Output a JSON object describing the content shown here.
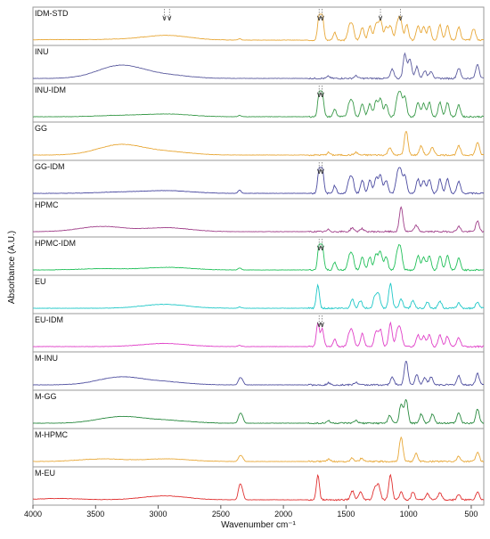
{
  "chart_data": {
    "type": "line",
    "title": "",
    "xlabel": "Wavenumber cm⁻¹",
    "ylabel": "Absorbance (A.U.)",
    "xlim": [
      4000,
      400
    ],
    "x_reversed": true,
    "x_ticks": [
      4000,
      3500,
      3000,
      2500,
      2000,
      1500,
      1000,
      500
    ],
    "grid": false,
    "legend": "none",
    "panels": [
      {
        "name": "IDM-STD",
        "color": "#e8a838",
        "peaks": [
          [
            3800,
            0.02
          ],
          [
            3300,
            0.03
          ],
          [
            2950,
            0.1
          ],
          [
            2900,
            0.08
          ],
          [
            2350,
            0.05
          ],
          [
            1715,
            0.9
          ],
          [
            1690,
            0.95
          ],
          [
            1590,
            0.3
          ],
          [
            1475,
            0.45
          ],
          [
            1450,
            0.55
          ],
          [
            1370,
            0.5
          ],
          [
            1310,
            0.55
          ],
          [
            1260,
            0.65
          ],
          [
            1225,
            0.8
          ],
          [
            1180,
            0.5
          ],
          [
            1145,
            0.55
          ],
          [
            1090,
            0.6
          ],
          [
            1065,
            0.75
          ],
          [
            1015,
            0.6
          ],
          [
            925,
            0.55
          ],
          [
            880,
            0.5
          ],
          [
            835,
            0.55
          ],
          [
            750,
            0.6
          ],
          [
            690,
            0.55
          ],
          [
            600,
            0.5
          ],
          [
            480,
            0.45
          ]
        ]
      },
      {
        "name": "INU",
        "color": "#5b5b9e",
        "peaks": [
          [
            3300,
            0.5
          ],
          [
            2930,
            0.12
          ],
          [
            1640,
            0.08
          ],
          [
            1420,
            0.1
          ],
          [
            1130,
            0.35
          ],
          [
            1030,
            0.95
          ],
          [
            990,
            0.75
          ],
          [
            935,
            0.45
          ],
          [
            870,
            0.3
          ],
          [
            820,
            0.28
          ],
          [
            600,
            0.4
          ],
          [
            450,
            0.55
          ]
        ]
      },
      {
        "name": "INU-IDM",
        "color": "#3a9a4a",
        "peaks": [
          [
            3300,
            0.05
          ],
          [
            2920,
            0.1
          ],
          [
            2350,
            0.05
          ],
          [
            1715,
            0.85
          ],
          [
            1690,
            0.9
          ],
          [
            1590,
            0.3
          ],
          [
            1475,
            0.45
          ],
          [
            1450,
            0.55
          ],
          [
            1370,
            0.5
          ],
          [
            1310,
            0.5
          ],
          [
            1260,
            0.6
          ],
          [
            1225,
            0.7
          ],
          [
            1180,
            0.5
          ],
          [
            1090,
            0.65
          ],
          [
            1065,
            0.8
          ],
          [
            1030,
            0.75
          ],
          [
            925,
            0.55
          ],
          [
            880,
            0.5
          ],
          [
            835,
            0.55
          ],
          [
            750,
            0.55
          ],
          [
            690,
            0.55
          ],
          [
            600,
            0.45
          ]
        ]
      },
      {
        "name": "GG",
        "color": "#e8a838",
        "peaks": [
          [
            3300,
            0.4
          ],
          [
            2920,
            0.12
          ],
          [
            1640,
            0.1
          ],
          [
            1420,
            0.1
          ],
          [
            1150,
            0.3
          ],
          [
            1020,
            0.95
          ],
          [
            900,
            0.35
          ],
          [
            810,
            0.3
          ],
          [
            600,
            0.35
          ],
          [
            450,
            0.5
          ]
        ]
      },
      {
        "name": "GG-IDM",
        "color": "#4a4aa0",
        "peaks": [
          [
            3300,
            0.05
          ],
          [
            2920,
            0.1
          ],
          [
            2350,
            0.12
          ],
          [
            1715,
            0.9
          ],
          [
            1690,
            0.95
          ],
          [
            1590,
            0.3
          ],
          [
            1475,
            0.45
          ],
          [
            1450,
            0.55
          ],
          [
            1370,
            0.5
          ],
          [
            1310,
            0.5
          ],
          [
            1260,
            0.6
          ],
          [
            1225,
            0.7
          ],
          [
            1180,
            0.5
          ],
          [
            1090,
            0.65
          ],
          [
            1065,
            0.8
          ],
          [
            1030,
            0.7
          ],
          [
            925,
            0.55
          ],
          [
            880,
            0.5
          ],
          [
            835,
            0.55
          ],
          [
            750,
            0.55
          ],
          [
            690,
            0.55
          ],
          [
            600,
            0.45
          ]
        ]
      },
      {
        "name": "HPMC",
        "color": "#a0408a",
        "peaks": [
          [
            3450,
            0.2
          ],
          [
            2930,
            0.15
          ],
          [
            1640,
            0.08
          ],
          [
            1450,
            0.15
          ],
          [
            1375,
            0.12
          ],
          [
            1060,
            0.95
          ],
          [
            940,
            0.25
          ],
          [
            600,
            0.2
          ],
          [
            450,
            0.4
          ]
        ]
      },
      {
        "name": "HPMC-IDM",
        "color": "#22c05a",
        "peaks": [
          [
            3450,
            0.05
          ],
          [
            2920,
            0.1
          ],
          [
            2350,
            0.08
          ],
          [
            1715,
            0.9
          ],
          [
            1690,
            0.95
          ],
          [
            1590,
            0.3
          ],
          [
            1475,
            0.45
          ],
          [
            1450,
            0.55
          ],
          [
            1370,
            0.5
          ],
          [
            1310,
            0.5
          ],
          [
            1260,
            0.6
          ],
          [
            1225,
            0.7
          ],
          [
            1180,
            0.5
          ],
          [
            1090,
            0.65
          ],
          [
            1065,
            0.8
          ],
          [
            925,
            0.55
          ],
          [
            880,
            0.5
          ],
          [
            835,
            0.55
          ],
          [
            750,
            0.55
          ],
          [
            690,
            0.55
          ],
          [
            600,
            0.45
          ]
        ]
      },
      {
        "name": "EU",
        "color": "#20c8c8",
        "peaks": [
          [
            2950,
            0.15
          ],
          [
            2350,
            0.05
          ],
          [
            1725,
            0.9
          ],
          [
            1450,
            0.35
          ],
          [
            1385,
            0.3
          ],
          [
            1270,
            0.45
          ],
          [
            1240,
            0.55
          ],
          [
            1145,
            0.95
          ],
          [
            1060,
            0.35
          ],
          [
            965,
            0.3
          ],
          [
            850,
            0.25
          ],
          [
            750,
            0.28
          ],
          [
            600,
            0.2
          ],
          [
            450,
            0.25
          ]
        ]
      },
      {
        "name": "EU-IDM",
        "color": "#e040c8",
        "peaks": [
          [
            2950,
            0.12
          ],
          [
            2350,
            0.05
          ],
          [
            1725,
            0.9
          ],
          [
            1690,
            0.7
          ],
          [
            1590,
            0.3
          ],
          [
            1475,
            0.45
          ],
          [
            1450,
            0.55
          ],
          [
            1370,
            0.5
          ],
          [
            1260,
            0.6
          ],
          [
            1225,
            0.65
          ],
          [
            1145,
            0.9
          ],
          [
            1090,
            0.55
          ],
          [
            1065,
            0.6
          ],
          [
            925,
            0.45
          ],
          [
            880,
            0.4
          ],
          [
            835,
            0.45
          ],
          [
            750,
            0.45
          ],
          [
            690,
            0.4
          ],
          [
            600,
            0.35
          ]
        ]
      },
      {
        "name": "M-INU",
        "color": "#5050a0",
        "peaks": [
          [
            3300,
            0.3
          ],
          [
            2930,
            0.1
          ],
          [
            2350,
            0.22
          ],
          [
            2330,
            0.18
          ],
          [
            1640,
            0.08
          ],
          [
            1420,
            0.1
          ],
          [
            1130,
            0.3
          ],
          [
            1020,
            0.95
          ],
          [
            935,
            0.4
          ],
          [
            870,
            0.28
          ],
          [
            820,
            0.3
          ],
          [
            600,
            0.35
          ],
          [
            450,
            0.45
          ]
        ]
      },
      {
        "name": "M-GG",
        "color": "#2a8a40",
        "peaks": [
          [
            3300,
            0.25
          ],
          [
            2920,
            0.1
          ],
          [
            2350,
            0.3
          ],
          [
            2330,
            0.25
          ],
          [
            1640,
            0.1
          ],
          [
            1420,
            0.1
          ],
          [
            1150,
            0.3
          ],
          [
            1060,
            0.75
          ],
          [
            1020,
            0.9
          ],
          [
            900,
            0.35
          ],
          [
            810,
            0.35
          ],
          [
            600,
            0.4
          ],
          [
            450,
            0.55
          ]
        ]
      },
      {
        "name": "M-HPMC",
        "color": "#e8a838",
        "peaks": [
          [
            3450,
            0.1
          ],
          [
            2930,
            0.1
          ],
          [
            2350,
            0.18
          ],
          [
            2330,
            0.15
          ],
          [
            1640,
            0.08
          ],
          [
            1450,
            0.15
          ],
          [
            1375,
            0.12
          ],
          [
            1060,
            0.95
          ],
          [
            940,
            0.3
          ],
          [
            600,
            0.2
          ],
          [
            450,
            0.35
          ]
        ]
      },
      {
        "name": "M-EU",
        "color": "#e03030",
        "peaks": [
          [
            3800,
            0.05
          ],
          [
            2950,
            0.15
          ],
          [
            2350,
            0.5
          ],
          [
            2330,
            0.35
          ],
          [
            1725,
            0.95
          ],
          [
            1450,
            0.35
          ],
          [
            1385,
            0.3
          ],
          [
            1270,
            0.45
          ],
          [
            1240,
            0.55
          ],
          [
            1145,
            0.95
          ],
          [
            1060,
            0.3
          ],
          [
            965,
            0.3
          ],
          [
            850,
            0.25
          ],
          [
            750,
            0.28
          ],
          [
            600,
            0.2
          ],
          [
            450,
            0.3
          ]
        ]
      }
    ],
    "markers": [
      {
        "panel": "IDM-STD",
        "x": 2950,
        "glyph": "∨"
      },
      {
        "panel": "IDM-STD",
        "x": 2910,
        "glyph": "∨"
      },
      {
        "panel": "IDM-STD",
        "x": 1715,
        "glyph": "∨"
      },
      {
        "panel": "IDM-STD",
        "x": 1690,
        "glyph": "∨"
      },
      {
        "panel": "IDM-STD",
        "x": 1225,
        "glyph": "∨"
      },
      {
        "panel": "IDM-STD",
        "x": 1065,
        "glyph": "∨"
      },
      {
        "panel": "INU-IDM",
        "x": 1715,
        "glyph": "∨"
      },
      {
        "panel": "INU-IDM",
        "x": 1690,
        "glyph": "∨"
      },
      {
        "panel": "GG-IDM",
        "x": 1715,
        "glyph": "∨"
      },
      {
        "panel": "GG-IDM",
        "x": 1690,
        "glyph": "∨"
      },
      {
        "panel": "HPMC-IDM",
        "x": 1715,
        "glyph": "∨"
      },
      {
        "panel": "HPMC-IDM",
        "x": 1690,
        "glyph": "∨"
      },
      {
        "panel": "EU-IDM",
        "x": 1715,
        "glyph": "∨"
      },
      {
        "panel": "EU-IDM",
        "x": 1690,
        "glyph": "∨"
      }
    ]
  }
}
